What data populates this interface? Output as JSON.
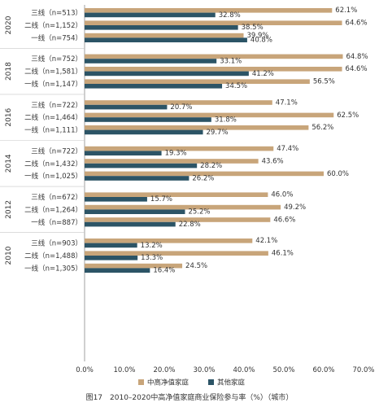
{
  "caption": "图17　2010–2020中高净值家庭商业保险参与率（%）（城市）",
  "colors": {
    "high": "#C8A57A",
    "other": "#2C5466",
    "axis": "#888888",
    "text": "#333333"
  },
  "chart_data": {
    "type": "bar",
    "orientation": "horizontal",
    "xlim": [
      0,
      70
    ],
    "xticks": [
      "0.0%",
      "10.0%",
      "20.0%",
      "30.0%",
      "40.0%",
      "50.0%",
      "60.0%",
      "70.0%"
    ],
    "legend": {
      "position": "bottom",
      "items": [
        "中高净值家庭",
        "其他家庭"
      ]
    },
    "series_names": [
      "中高净值家庭",
      "其他家庭"
    ],
    "groups": [
      {
        "year": "2020",
        "cities": [
          {
            "label": "三线（n=513）",
            "values": [
              62.1,
              32.8
            ],
            "labels": [
              "62.1%",
              "32.8%"
            ]
          },
          {
            "label": "二线（n=1,152）",
            "values": [
              64.6,
              38.5
            ],
            "labels": [
              "64.6%",
              "38.5%"
            ]
          },
          {
            "label": "一线（n=754）",
            "values": [
              39.9,
              40.8
            ],
            "labels": [
              "39.9%",
              "40.8%"
            ]
          }
        ]
      },
      {
        "year": "2018",
        "cities": [
          {
            "label": "三线（n=752）",
            "values": [
              64.8,
              33.1
            ],
            "labels": [
              "64.8%",
              "33.1%"
            ]
          },
          {
            "label": "二线（n=1,581）",
            "values": [
              64.6,
              41.2
            ],
            "labels": [
              "64.6%",
              "41.2%"
            ]
          },
          {
            "label": "一线（n=1,147）",
            "values": [
              56.5,
              34.5
            ],
            "labels": [
              "56.5%",
              "34.5%"
            ]
          }
        ]
      },
      {
        "year": "2016",
        "cities": [
          {
            "label": "三线（n=722）",
            "values": [
              47.1,
              20.7
            ],
            "labels": [
              "47.1%",
              "20.7%"
            ]
          },
          {
            "label": "二线（n=1,464）",
            "values": [
              62.5,
              31.8
            ],
            "labels": [
              "62.5%",
              "31.8%"
            ]
          },
          {
            "label": "一线（n=1,111）",
            "values": [
              56.2,
              29.7
            ],
            "labels": [
              "56.2%",
              "29.7%"
            ]
          }
        ]
      },
      {
        "year": "2014",
        "cities": [
          {
            "label": "三线（n=722）",
            "values": [
              47.4,
              19.3
            ],
            "labels": [
              "47.4%",
              "19.3%"
            ]
          },
          {
            "label": "二线（n=1,432）",
            "values": [
              43.6,
              28.2
            ],
            "labels": [
              "43.6%",
              "28.2%"
            ]
          },
          {
            "label": "一线（n=1,025）",
            "values": [
              60.0,
              26.2
            ],
            "labels": [
              "60.0%",
              "26.2%"
            ]
          }
        ]
      },
      {
        "year": "2012",
        "cities": [
          {
            "label": "三线（n=672）",
            "values": [
              46.0,
              15.7
            ],
            "labels": [
              "46.0%",
              "15.7%"
            ]
          },
          {
            "label": "二线（n=1,264）",
            "values": [
              49.2,
              25.2
            ],
            "labels": [
              "49.2%",
              "25.2%"
            ]
          },
          {
            "label": "一线（n=887）",
            "values": [
              46.6,
              22.8
            ],
            "labels": [
              "46.6%",
              "22.8%"
            ]
          }
        ]
      },
      {
        "year": "2010",
        "cities": [
          {
            "label": "三线（n=903）",
            "values": [
              42.1,
              13.2
            ],
            "labels": [
              "42.1%",
              "13.2%"
            ]
          },
          {
            "label": "二线（n=1,488）",
            "values": [
              46.1,
              13.3
            ],
            "labels": [
              "46.1%",
              "13.3%"
            ]
          },
          {
            "label": "一线（n=1,305）",
            "values": [
              24.5,
              16.4
            ],
            "labels": [
              "24.5%",
              "16.4%"
            ]
          }
        ]
      }
    ]
  }
}
